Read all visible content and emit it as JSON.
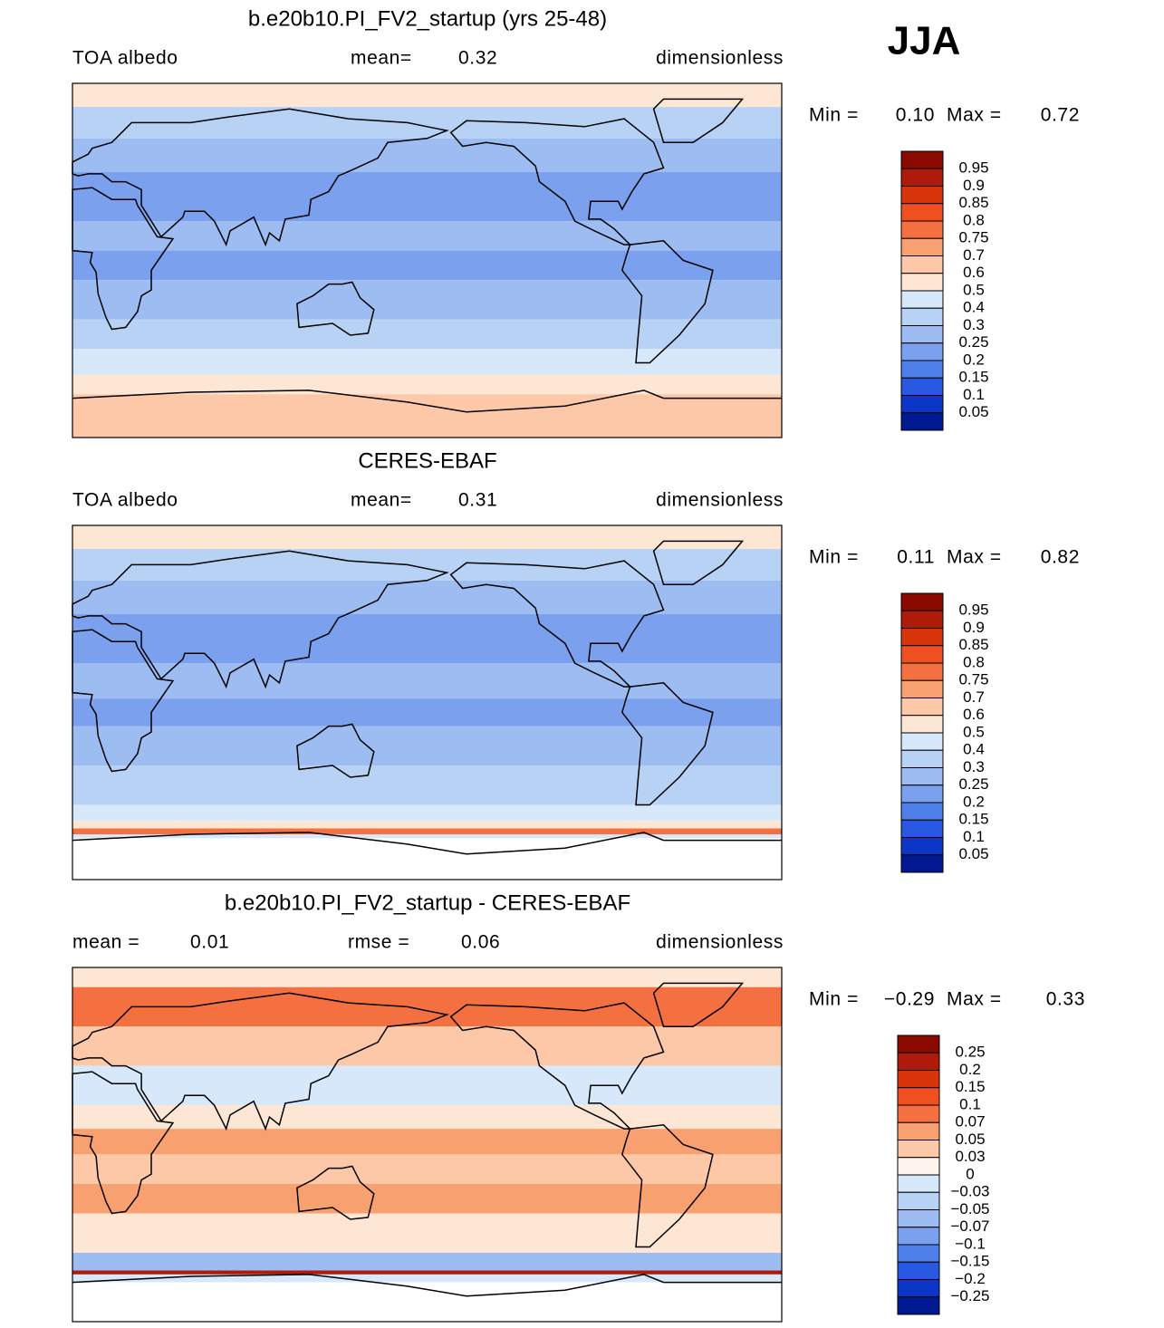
{
  "season": "JJA",
  "panels": [
    {
      "title": "b.e20b10.PI_FV2_startup (yrs 25-48)",
      "variable": "TOA albedo",
      "stats": [
        {
          "label": "mean=",
          "value": "0.32"
        }
      ],
      "units": "dimensionless",
      "min_label": "Min =",
      "min": "0.10",
      "max_label": "Max =",
      "max": "0.72",
      "colorbar": {
        "labels": [
          "0.95",
          "0.9",
          "0.85",
          "0.8",
          "0.75",
          "0.7",
          "0.6",
          "0.5",
          "0.4",
          "0.3",
          "0.25",
          "0.2",
          "0.15",
          "0.1",
          "0.05"
        ],
        "colors": [
          "#8b0a00",
          "#b01a08",
          "#d9350c",
          "#f05020",
          "#f57040",
          "#f9a070",
          "#fcc8a8",
          "#fde6d4",
          "#d6e8fa",
          "#b8d2f6",
          "#9cbcf2",
          "#7aa0ee",
          "#4f80ea",
          "#2858e0",
          "#0c36c8",
          "#001890"
        ]
      }
    },
    {
      "title": "CERES-EBAF",
      "variable": "TOA albedo",
      "stats": [
        {
          "label": "mean=",
          "value": "0.31"
        }
      ],
      "units": "dimensionless",
      "min_label": "Min =",
      "min": "0.11",
      "max_label": "Max =",
      "max": "0.82",
      "colorbar": {
        "labels": [
          "0.95",
          "0.9",
          "0.85",
          "0.8",
          "0.75",
          "0.7",
          "0.6",
          "0.5",
          "0.4",
          "0.3",
          "0.25",
          "0.2",
          "0.15",
          "0.1",
          "0.05"
        ],
        "colors": [
          "#8b0a00",
          "#b01a08",
          "#d9350c",
          "#f05020",
          "#f57040",
          "#f9a070",
          "#fcc8a8",
          "#fde6d4",
          "#d6e8fa",
          "#b8d2f6",
          "#9cbcf2",
          "#7aa0ee",
          "#4f80ea",
          "#2858e0",
          "#0c36c8",
          "#001890"
        ]
      }
    },
    {
      "title": "b.e20b10.PI_FV2_startup - CERES-EBAF",
      "stats": [
        {
          "label": "mean =",
          "value": "0.01"
        },
        {
          "label": "rmse =",
          "value": "0.06"
        }
      ],
      "units": "dimensionless",
      "min_label": "Min =",
      "min": "−0.29",
      "max_label": "Max =",
      "max": "0.33",
      "colorbar": {
        "labels": [
          "0.25",
          "0.2",
          "0.15",
          "0.1",
          "0.07",
          "0.05",
          "0.03",
          "0",
          "−0.03",
          "−0.05",
          "−0.07",
          "−0.1",
          "−0.15",
          "−0.2",
          "−0.25"
        ],
        "colors": [
          "#8b0a00",
          "#b01a08",
          "#d9350c",
          "#f05020",
          "#f57040",
          "#f9a070",
          "#fcc8a8",
          "#fff5ee",
          "#d6e8fa",
          "#b8d2f6",
          "#9cbcf2",
          "#7aa0ee",
          "#4f80ea",
          "#2858e0",
          "#0c36c8",
          "#001890"
        ]
      }
    }
  ]
}
